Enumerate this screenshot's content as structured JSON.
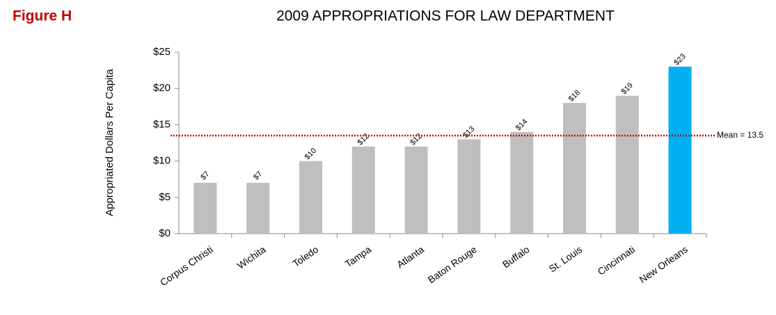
{
  "chart_data": {
    "type": "bar",
    "figure_label": "Figure H",
    "title": "2009 APPROPRIATIONS FOR LAW DEPARTMENT",
    "y_label": "Appropriated Dollars Per Capita",
    "categories": [
      "Corpus Christi",
      "Wichita",
      "Toledo",
      "Tampa",
      "Atlanta",
      "Baton Rouge",
      "Buffalo",
      "St. Louis",
      "Cincinnati",
      "New Orleans"
    ],
    "values": [
      7,
      7,
      10,
      12,
      12,
      13,
      14,
      18,
      19,
      23
    ],
    "value_labels": [
      "$7",
      "$7",
      "$10",
      "$12",
      "$12",
      "$13",
      "$14",
      "$18",
      "$19",
      "$23"
    ],
    "colors": [
      "#bfbfbf",
      "#bfbfbf",
      "#bfbfbf",
      "#bfbfbf",
      "#bfbfbf",
      "#bfbfbf",
      "#bfbfbf",
      "#bfbfbf",
      "#bfbfbf",
      "#00b0f0"
    ],
    "ylim": [
      0,
      25
    ],
    "yticks": [
      {
        "value": 0,
        "label": "$0"
      },
      {
        "value": 5,
        "label": "$5"
      },
      {
        "value": 10,
        "label": "$10"
      },
      {
        "value": 15,
        "label": "$15"
      },
      {
        "value": 20,
        "label": "$20"
      },
      {
        "value": 25,
        "label": "$25"
      }
    ],
    "mean": 13.5,
    "mean_label": "Mean = 13.5",
    "mean_color": "#c00000",
    "grid": false
  }
}
